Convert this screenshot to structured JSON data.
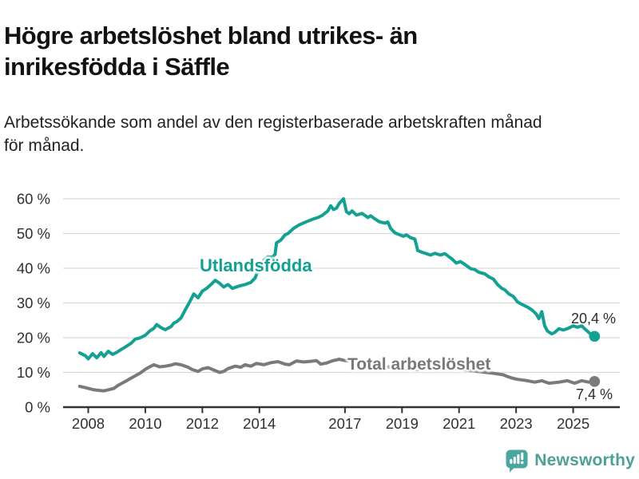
{
  "header": {
    "title": "Högre arbetslöshet bland utrikes- än\ninrikesfödda i Säffle",
    "subtitle": "Arbetssökande som andel av den registerbaserade arbetskraften månad\nför månad."
  },
  "chart_data": {
    "type": "line",
    "unit": "%",
    "grid": "horizontal",
    "x_axis": {
      "ticks": [
        2008,
        2010,
        2012,
        2014,
        2017,
        2019,
        2021,
        2023,
        2025
      ],
      "tick_labels": [
        "2008",
        "2010",
        "2012",
        "2014",
        "2017",
        "2019",
        "2021",
        "2023",
        "2025"
      ],
      "range": [
        2007.55,
        2026.35
      ]
    },
    "y_axis": {
      "ticks": [
        0,
        10,
        20,
        30,
        40,
        50,
        60
      ],
      "tick_labels": [
        "0 %",
        "10 %",
        "20 %",
        "30 %",
        "40 %",
        "50 %",
        "60 %"
      ],
      "range": [
        0,
        62
      ]
    },
    "series": [
      {
        "name": "Utlandsfödda",
        "color": "#14a092",
        "end_label": "20,4 %",
        "end_value": 20.4,
        "points": [
          [
            2007.7,
            15.6
          ],
          [
            2007.9,
            14.8
          ],
          [
            2008.0,
            13.9
          ],
          [
            2008.15,
            15.4
          ],
          [
            2008.3,
            14.2
          ],
          [
            2008.45,
            15.7
          ],
          [
            2008.55,
            14.6
          ],
          [
            2008.7,
            16.1
          ],
          [
            2008.85,
            15.2
          ],
          [
            2009.0,
            15.8
          ],
          [
            2009.15,
            16.6
          ],
          [
            2009.3,
            17.3
          ],
          [
            2009.5,
            18.4
          ],
          [
            2009.65,
            19.6
          ],
          [
            2009.8,
            19.9
          ],
          [
            2010.0,
            20.7
          ],
          [
            2010.15,
            21.9
          ],
          [
            2010.3,
            22.7
          ],
          [
            2010.4,
            23.8
          ],
          [
            2010.55,
            22.9
          ],
          [
            2010.7,
            22.3
          ],
          [
            2010.9,
            23.2
          ],
          [
            2011.0,
            24.2
          ],
          [
            2011.1,
            24.6
          ],
          [
            2011.25,
            25.7
          ],
          [
            2011.4,
            28.0
          ],
          [
            2011.5,
            29.5
          ],
          [
            2011.6,
            31.0
          ],
          [
            2011.7,
            32.6
          ],
          [
            2011.85,
            31.5
          ],
          [
            2012.0,
            33.4
          ],
          [
            2012.15,
            34.2
          ],
          [
            2012.3,
            35.3
          ],
          [
            2012.45,
            36.5
          ],
          [
            2012.6,
            35.7
          ],
          [
            2012.75,
            34.6
          ],
          [
            2012.9,
            35.3
          ],
          [
            2013.05,
            34.2
          ],
          [
            2013.3,
            34.9
          ],
          [
            2013.5,
            35.3
          ],
          [
            2013.7,
            35.9
          ],
          [
            2013.85,
            37.2
          ],
          [
            2014.0,
            40.2
          ],
          [
            2014.15,
            42.3
          ],
          [
            2014.3,
            43.3
          ],
          [
            2014.45,
            43.1
          ],
          [
            2014.55,
            44.0
          ],
          [
            2014.6,
            47.3
          ],
          [
            2014.75,
            48.1
          ],
          [
            2014.9,
            49.6
          ],
          [
            2015.0,
            50.0
          ],
          [
            2015.2,
            51.5
          ],
          [
            2015.4,
            52.5
          ],
          [
            2015.65,
            53.4
          ],
          [
            2015.9,
            54.2
          ],
          [
            2016.05,
            54.6
          ],
          [
            2016.2,
            55.2
          ],
          [
            2016.4,
            56.5
          ],
          [
            2016.5,
            58.0
          ],
          [
            2016.6,
            56.9
          ],
          [
            2016.7,
            57.3
          ],
          [
            2016.8,
            58.7
          ],
          [
            2016.95,
            60.0
          ],
          [
            2017.05,
            56.3
          ],
          [
            2017.15,
            55.7
          ],
          [
            2017.25,
            56.5
          ],
          [
            2017.4,
            55.3
          ],
          [
            2017.6,
            55.8
          ],
          [
            2017.8,
            54.6
          ],
          [
            2017.9,
            55.1
          ],
          [
            2018.05,
            54.2
          ],
          [
            2018.2,
            53.4
          ],
          [
            2018.4,
            53.0
          ],
          [
            2018.5,
            53.3
          ],
          [
            2018.6,
            51.5
          ],
          [
            2018.75,
            50.2
          ],
          [
            2018.9,
            49.7
          ],
          [
            2019.05,
            49.2
          ],
          [
            2019.15,
            49.6
          ],
          [
            2019.3,
            48.8
          ],
          [
            2019.45,
            48.4
          ],
          [
            2019.55,
            45.1
          ],
          [
            2019.7,
            44.6
          ],
          [
            2019.85,
            44.2
          ],
          [
            2020.0,
            43.8
          ],
          [
            2020.15,
            44.3
          ],
          [
            2020.35,
            43.8
          ],
          [
            2020.5,
            44.2
          ],
          [
            2020.6,
            43.6
          ],
          [
            2020.75,
            42.7
          ],
          [
            2020.9,
            41.5
          ],
          [
            2021.05,
            41.9
          ],
          [
            2021.2,
            41.1
          ],
          [
            2021.4,
            39.9
          ],
          [
            2021.55,
            39.6
          ],
          [
            2021.7,
            38.8
          ],
          [
            2021.9,
            38.4
          ],
          [
            2022.05,
            37.5
          ],
          [
            2022.2,
            36.9
          ],
          [
            2022.35,
            35.3
          ],
          [
            2022.5,
            34.2
          ],
          [
            2022.6,
            33.8
          ],
          [
            2022.75,
            32.6
          ],
          [
            2022.9,
            31.9
          ],
          [
            2023.05,
            30.3
          ],
          [
            2023.2,
            29.6
          ],
          [
            2023.4,
            28.8
          ],
          [
            2023.55,
            28.0
          ],
          [
            2023.7,
            26.9
          ],
          [
            2023.8,
            25.5
          ],
          [
            2023.9,
            27.5
          ],
          [
            2024.0,
            23.4
          ],
          [
            2024.1,
            21.9
          ],
          [
            2024.25,
            21.1
          ],
          [
            2024.35,
            21.5
          ],
          [
            2024.5,
            22.6
          ],
          [
            2024.65,
            22.2
          ],
          [
            2024.8,
            22.6
          ],
          [
            2025.0,
            23.4
          ],
          [
            2025.15,
            23.0
          ],
          [
            2025.3,
            23.4
          ],
          [
            2025.4,
            22.6
          ],
          [
            2025.55,
            21.5
          ],
          [
            2025.65,
            20.8
          ],
          [
            2025.75,
            20.4
          ]
        ]
      },
      {
        "name": "Total arbetslöshet",
        "color": "#7a7a7a",
        "end_label": "7,4 %",
        "end_value": 7.4,
        "points": [
          [
            2007.7,
            6.0
          ],
          [
            2007.9,
            5.6
          ],
          [
            2008.05,
            5.3
          ],
          [
            2008.2,
            5.0
          ],
          [
            2008.4,
            4.8
          ],
          [
            2008.55,
            4.7
          ],
          [
            2008.7,
            5.0
          ],
          [
            2008.9,
            5.4
          ],
          [
            2009.05,
            6.3
          ],
          [
            2009.3,
            7.4
          ],
          [
            2009.55,
            8.6
          ],
          [
            2009.8,
            9.7
          ],
          [
            2010.0,
            10.9
          ],
          [
            2010.15,
            11.6
          ],
          [
            2010.3,
            12.2
          ],
          [
            2010.5,
            11.6
          ],
          [
            2010.7,
            11.8
          ],
          [
            2010.9,
            12.1
          ],
          [
            2011.05,
            12.5
          ],
          [
            2011.25,
            12.2
          ],
          [
            2011.5,
            11.5
          ],
          [
            2011.65,
            10.8
          ],
          [
            2011.85,
            10.3
          ],
          [
            2012.0,
            11.0
          ],
          [
            2012.2,
            11.4
          ],
          [
            2012.4,
            10.7
          ],
          [
            2012.6,
            10.0
          ],
          [
            2012.75,
            10.3
          ],
          [
            2012.9,
            11.1
          ],
          [
            2013.15,
            11.8
          ],
          [
            2013.35,
            11.5
          ],
          [
            2013.5,
            12.2
          ],
          [
            2013.7,
            11.8
          ],
          [
            2013.9,
            12.6
          ],
          [
            2014.15,
            12.2
          ],
          [
            2014.4,
            12.8
          ],
          [
            2014.65,
            13.1
          ],
          [
            2014.9,
            12.4
          ],
          [
            2015.05,
            12.2
          ],
          [
            2015.3,
            13.3
          ],
          [
            2015.55,
            13.0
          ],
          [
            2015.8,
            13.2
          ],
          [
            2016.0,
            13.4
          ],
          [
            2016.15,
            12.4
          ],
          [
            2016.35,
            12.7
          ],
          [
            2016.55,
            13.3
          ],
          [
            2016.8,
            13.8
          ],
          [
            2017.0,
            13.4
          ],
          [
            2017.5,
            12.8
          ],
          [
            2018.0,
            12.2
          ],
          [
            2018.5,
            11.6
          ],
          [
            2019.0,
            11.2
          ],
          [
            2019.5,
            10.8
          ],
          [
            2020.0,
            11.2
          ],
          [
            2020.3,
            11.8
          ],
          [
            2020.75,
            11.3
          ],
          [
            2021.25,
            10.7
          ],
          [
            2021.75,
            10.2
          ],
          [
            2022.25,
            9.7
          ],
          [
            2022.55,
            9.3
          ],
          [
            2022.7,
            8.8
          ],
          [
            2022.85,
            8.4
          ],
          [
            2023.05,
            8.0
          ],
          [
            2023.4,
            7.6
          ],
          [
            2023.65,
            7.2
          ],
          [
            2023.9,
            7.6
          ],
          [
            2024.15,
            6.9
          ],
          [
            2024.5,
            7.2
          ],
          [
            2024.8,
            7.6
          ],
          [
            2025.05,
            6.9
          ],
          [
            2025.3,
            7.6
          ],
          [
            2025.55,
            7.2
          ],
          [
            2025.75,
            7.4
          ]
        ]
      }
    ]
  },
  "footer": {
    "brand": "Newsworthy"
  },
  "colors": {
    "series_utlandsfodda": "#14a092",
    "series_total": "#7a7a7a",
    "grid": "#d9d9d9",
    "axis": "#333333",
    "tick_text": "#303030",
    "title_text": "#121212",
    "logo": "#4aa69f"
  }
}
